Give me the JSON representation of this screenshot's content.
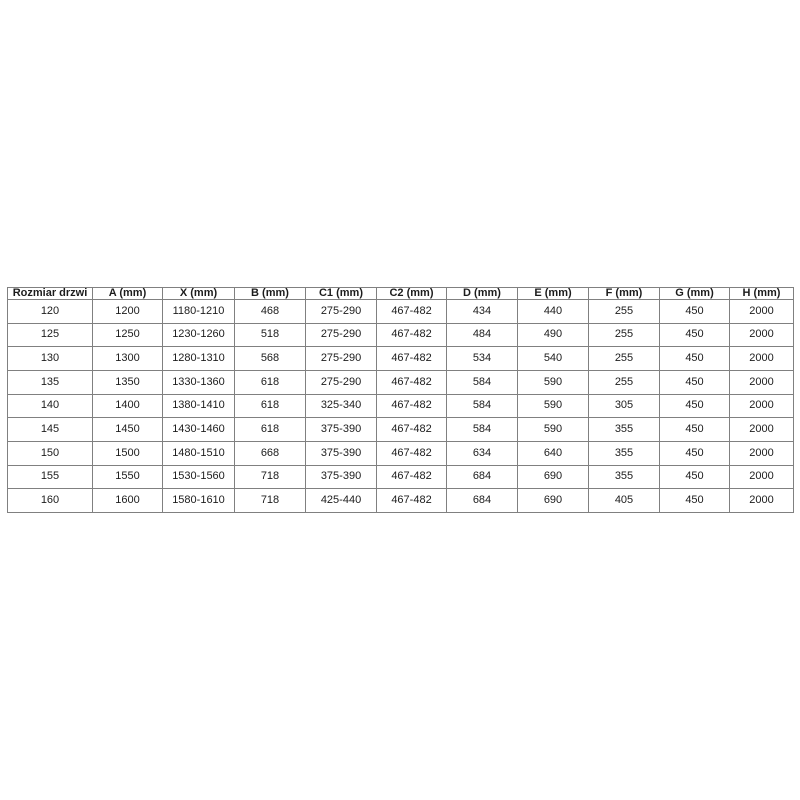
{
  "colors": {
    "background": "#ffffff",
    "table_border": "#808080",
    "table_text": "#1c1c1c"
  },
  "chart_data": {
    "type": "table",
    "title": "",
    "columns": [
      "Rozmiar drzwi",
      "A (mm)",
      "X (mm)",
      "B (mm)",
      "C1 (mm)",
      "C2 (mm)",
      "D (mm)",
      "E (mm)",
      "F (mm)",
      "G (mm)",
      "H (mm)"
    ],
    "rows": [
      [
        "120",
        "1200",
        "1180-1210",
        "468",
        "275-290",
        "467-482",
        "434",
        "440",
        "255",
        "450",
        "2000"
      ],
      [
        "125",
        "1250",
        "1230-1260",
        "518",
        "275-290",
        "467-482",
        "484",
        "490",
        "255",
        "450",
        "2000"
      ],
      [
        "130",
        "1300",
        "1280-1310",
        "568",
        "275-290",
        "467-482",
        "534",
        "540",
        "255",
        "450",
        "2000"
      ],
      [
        "135",
        "1350",
        "1330-1360",
        "618",
        "275-290",
        "467-482",
        "584",
        "590",
        "255",
        "450",
        "2000"
      ],
      [
        "140",
        "1400",
        "1380-1410",
        "618",
        "325-340",
        "467-482",
        "584",
        "590",
        "305",
        "450",
        "2000"
      ],
      [
        "145",
        "1450",
        "1430-1460",
        "618",
        "375-390",
        "467-482",
        "584",
        "590",
        "355",
        "450",
        "2000"
      ],
      [
        "150",
        "1500",
        "1480-1510",
        "668",
        "375-390",
        "467-482",
        "634",
        "640",
        "355",
        "450",
        "2000"
      ],
      [
        "155",
        "1550",
        "1530-1560",
        "718",
        "375-390",
        "467-482",
        "684",
        "690",
        "355",
        "450",
        "2000"
      ],
      [
        "160",
        "1600",
        "1580-1610",
        "718",
        "425-440",
        "467-482",
        "684",
        "690",
        "405",
        "450",
        "2000"
      ]
    ],
    "layout": {
      "grid": true,
      "header_bold": true,
      "alignment": "center"
    }
  }
}
